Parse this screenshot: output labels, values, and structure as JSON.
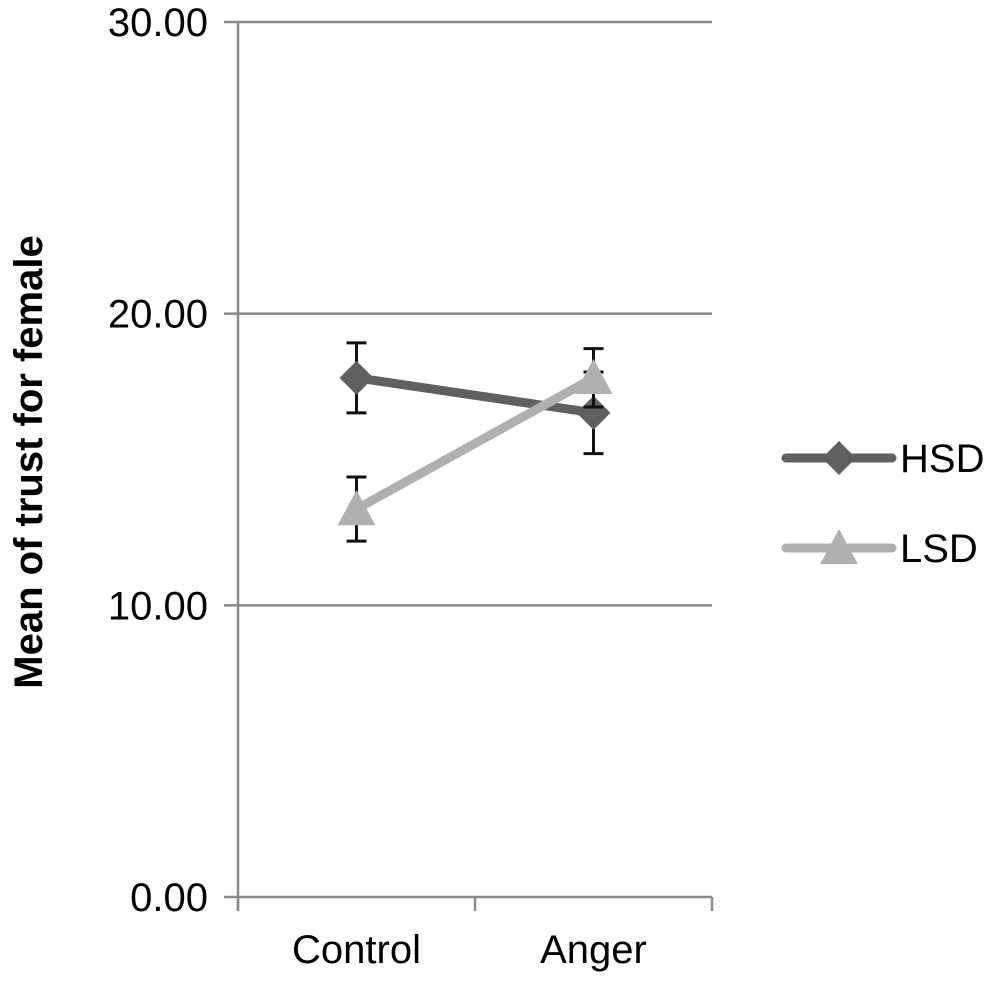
{
  "chart_data": {
    "type": "line",
    "categories": [
      "Control",
      "Anger"
    ],
    "ylabel": "Mean of trust for female",
    "xlabel": "",
    "ylim": [
      0,
      30
    ],
    "yticks": [
      0,
      10,
      20,
      30
    ],
    "ytick_labels": [
      "0.00",
      "10.00",
      "20.00",
      "30.00"
    ],
    "grid": true,
    "legend_position": "right",
    "series": [
      {
        "name": "HSD",
        "marker": "diamond",
        "color": "#606060",
        "values": [
          17.8,
          16.6
        ],
        "error": [
          1.2,
          1.4
        ]
      },
      {
        "name": "LSD",
        "marker": "triangle",
        "color": "#b0b0b0",
        "values": [
          13.3,
          17.8
        ],
        "error": [
          1.1,
          1.0
        ]
      }
    ]
  }
}
